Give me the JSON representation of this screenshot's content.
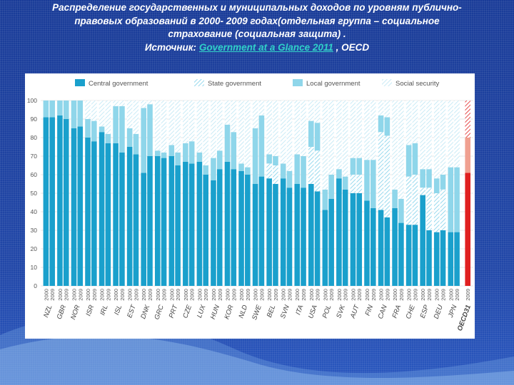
{
  "title": {
    "line1": "Распределение государственных и муниципальных доходов по уровням публично-",
    "line2": "правовых образований в 2000- 2009 годах(отдельная группа – социальное",
    "line3": "страхование (социальная защита) .",
    "source_prefix": "Источник: ",
    "source_link": "Government at a Glance 2011",
    "source_suffix": " , OECD"
  },
  "colors": {
    "central": "#1aa0cc",
    "state": "#7fd0ea",
    "local": "#8fd6ea",
    "social": "#bde6f4",
    "highlight": "#e02020",
    "highlight_light": "#f0a090"
  },
  "chart_data": {
    "type": "bar",
    "stacked": true,
    "legend": [
      "Central government",
      "State government",
      "Local government",
      "Social security"
    ],
    "legend_position": "top",
    "ylim": [
      0,
      100
    ],
    "yticks": [
      0,
      10,
      20,
      30,
      40,
      50,
      60,
      70,
      80,
      90,
      100
    ],
    "grid": true,
    "countries": [
      {
        "code": "NZL",
        "years": [
          "2000",
          "2009"
        ],
        "central": [
          91,
          91
        ],
        "state": [
          0,
          0
        ],
        "local": [
          9,
          9
        ],
        "social": [
          0,
          0
        ]
      },
      {
        "code": "GBR",
        "years": [
          "2000",
          "2009"
        ],
        "central": [
          92,
          90
        ],
        "state": [
          0,
          0
        ],
        "local": [
          8,
          10
        ],
        "social": [
          0,
          0
        ]
      },
      {
        "code": "NOR",
        "years": [
          "2000",
          "2009"
        ],
        "central": [
          85,
          86
        ],
        "state": [
          0,
          0
        ],
        "local": [
          15,
          14
        ],
        "social": [
          0,
          0
        ]
      },
      {
        "code": "ISR",
        "years": [
          "2000",
          "2009"
        ],
        "central": [
          80,
          78
        ],
        "state": [
          0,
          0
        ],
        "local": [
          10,
          11
        ],
        "social": [
          10,
          11
        ]
      },
      {
        "code": "IRL",
        "years": [
          "2000",
          "2009"
        ],
        "central": [
          83,
          77
        ],
        "state": [
          0,
          0
        ],
        "local": [
          3,
          5
        ],
        "social": [
          14,
          18
        ]
      },
      {
        "code": "ISL",
        "years": [
          "2000",
          "2009"
        ],
        "central": [
          77,
          72
        ],
        "state": [
          0,
          0
        ],
        "local": [
          20,
          25
        ],
        "social": [
          3,
          3
        ]
      },
      {
        "code": "EST",
        "years": [
          "2000",
          "2009"
        ],
        "central": [
          75,
          71
        ],
        "state": [
          0,
          0
        ],
        "local": [
          10,
          11
        ],
        "social": [
          15,
          18
        ]
      },
      {
        "code": "DNK",
        "years": [
          "2000",
          "2009"
        ],
        "central": [
          61,
          70
        ],
        "state": [
          0,
          0
        ],
        "local": [
          35,
          28
        ],
        "social": [
          4,
          2
        ]
      },
      {
        "code": "GRC",
        "years": [
          "2000",
          "2009"
        ],
        "central": [
          70,
          69
        ],
        "state": [
          0,
          0
        ],
        "local": [
          3,
          3
        ],
        "social": [
          27,
          28
        ]
      },
      {
        "code": "PRT",
        "years": [
          "2000",
          "2009"
        ],
        "central": [
          70,
          65
        ],
        "state": [
          0,
          0
        ],
        "local": [
          6,
          7
        ],
        "social": [
          24,
          28
        ]
      },
      {
        "code": "CZE",
        "years": [
          "2000",
          "2009"
        ],
        "central": [
          67,
          66
        ],
        "state": [
          0,
          0
        ],
        "local": [
          10,
          12
        ],
        "social": [
          23,
          22
        ]
      },
      {
        "code": "LUX",
        "years": [
          "2000",
          "2009"
        ],
        "central": [
          67,
          60
        ],
        "state": [
          0,
          0
        ],
        "local": [
          5,
          5
        ],
        "social": [
          28,
          35
        ]
      },
      {
        "code": "HUN",
        "years": [
          "2000",
          "2009"
        ],
        "central": [
          57,
          63
        ],
        "state": [
          0,
          0
        ],
        "local": [
          12,
          10
        ],
        "social": [
          31,
          27
        ]
      },
      {
        "code": "KOR",
        "years": [
          "2000",
          "2009"
        ],
        "central": [
          67,
          63
        ],
        "state": [
          0,
          0
        ],
        "local": [
          20,
          20
        ],
        "social": [
          13,
          17
        ]
      },
      {
        "code": "NLD",
        "years": [
          "2000",
          "2009"
        ],
        "central": [
          62,
          60
        ],
        "state": [
          0,
          0
        ],
        "local": [
          4,
          4
        ],
        "social": [
          34,
          36
        ]
      },
      {
        "code": "SWE",
        "years": [
          "2000",
          "2009"
        ],
        "central": [
          55,
          59
        ],
        "state": [
          0,
          0
        ],
        "local": [
          30,
          33
        ],
        "social": [
          15,
          8
        ]
      },
      {
        "code": "BEL",
        "years": [
          "2000",
          "2009"
        ],
        "central": [
          58,
          55
        ],
        "state": [
          8,
          10
        ],
        "local": [
          5,
          5
        ],
        "social": [
          29,
          30
        ]
      },
      {
        "code": "SVN",
        "years": [
          "2000",
          "2009"
        ],
        "central": [
          58,
          53
        ],
        "state": [
          0,
          0
        ],
        "local": [
          8,
          9
        ],
        "social": [
          34,
          38
        ]
      },
      {
        "code": "ITA",
        "years": [
          "2000",
          "2009"
        ],
        "central": [
          55,
          53
        ],
        "state": [
          0,
          0
        ],
        "local": [
          16,
          17
        ],
        "social": [
          29,
          30
        ]
      },
      {
        "code": "USA",
        "years": [
          "2000",
          "2009"
        ],
        "central": [
          55,
          51
        ],
        "state": [
          20,
          22
        ],
        "local": [
          14,
          15
        ],
        "social": [
          11,
          12
        ]
      },
      {
        "code": "POL",
        "years": [
          "2000",
          "2009"
        ],
        "central": [
          41,
          47
        ],
        "state": [
          0,
          0
        ],
        "local": [
          11,
          13
        ],
        "social": [
          48,
          40
        ]
      },
      {
        "code": "SVK",
        "years": [
          "2000",
          "2009"
        ],
        "central": [
          58,
          52
        ],
        "state": [
          0,
          0
        ],
        "local": [
          5,
          7
        ],
        "social": [
          37,
          41
        ]
      },
      {
        "code": "AUT",
        "years": [
          "2000",
          "2009"
        ],
        "central": [
          50,
          50
        ],
        "state": [
          10,
          10
        ],
        "local": [
          9,
          9
        ],
        "social": [
          31,
          31
        ]
      },
      {
        "code": "FIN",
        "years": [
          "2000",
          "2009"
        ],
        "central": [
          46,
          42
        ],
        "state": [
          0,
          0
        ],
        "local": [
          22,
          26
        ],
        "social": [
          32,
          32
        ]
      },
      {
        "code": "CAN",
        "years": [
          "2000",
          "2009"
        ],
        "central": [
          41,
          37
        ],
        "state": [
          42,
          44
        ],
        "local": [
          9,
          10
        ],
        "social": [
          8,
          9
        ]
      },
      {
        "code": "FRA",
        "years": [
          "2000",
          "2009"
        ],
        "central": [
          42,
          34
        ],
        "state": [
          0,
          0
        ],
        "local": [
          10,
          13
        ],
        "social": [
          48,
          53
        ]
      },
      {
        "code": "CHE",
        "years": [
          "2000",
          "2009"
        ],
        "central": [
          33,
          33
        ],
        "state": [
          26,
          27
        ],
        "local": [
          17,
          17
        ],
        "social": [
          24,
          23
        ]
      },
      {
        "code": "ESP",
        "years": [
          "2000",
          "2009"
        ],
        "central": [
          49,
          30
        ],
        "state": [
          4,
          23
        ],
        "local": [
          10,
          10
        ],
        "social": [
          37,
          37
        ]
      },
      {
        "code": "DEU",
        "years": [
          "2000",
          "2009"
        ],
        "central": [
          29,
          30
        ],
        "state": [
          21,
          22
        ],
        "local": [
          8,
          8
        ],
        "social": [
          42,
          40
        ]
      },
      {
        "code": "JPN",
        "years": [
          "2000",
          "2009"
        ],
        "central": [
          29,
          29
        ],
        "state": [
          0,
          0
        ],
        "local": [
          35,
          35
        ],
        "social": [
          36,
          36
        ]
      },
      {
        "code": "OECD31",
        "years": [
          "2009"
        ],
        "central": [
          61
        ],
        "state": [
          0
        ],
        "local": [
          19
        ],
        "social": [
          20
        ],
        "highlight": true
      }
    ]
  }
}
